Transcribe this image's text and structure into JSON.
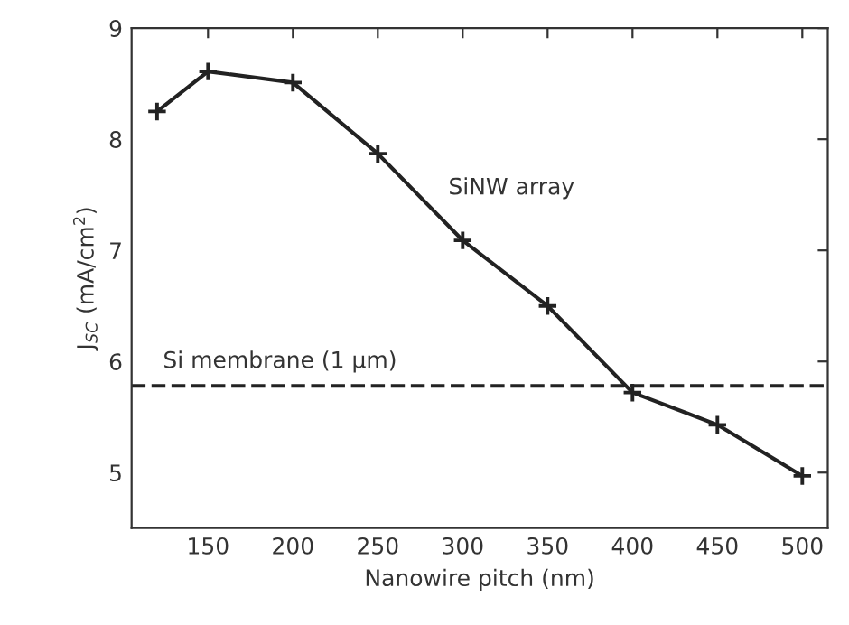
{
  "chart_data": {
    "type": "line",
    "xlabel": "Nanowire pitch (nm)",
    "ylabel": "J$_{SC}$ (mA/cm$^{2}$)",
    "x": [
      120,
      150,
      200,
      250,
      300,
      350,
      400,
      450,
      500
    ],
    "series": [
      {
        "color": "#222222",
        "values": [
          8.25,
          8.61,
          8.51,
          7.87,
          7.09,
          6.5,
          5.72,
          5.43,
          4.97
        ]
      }
    ],
    "xlim": [
      105,
      515
    ],
    "ylim": [
      4.5,
      9
    ],
    "xticks": [
      150,
      200,
      250,
      300,
      350,
      400,
      450,
      500
    ],
    "yticks": [
      5,
      6,
      7,
      8,
      9
    ],
    "ref_lines": [
      {
        "axis": "y",
        "value": 5.78,
        "label": "Si membrane (1 μm)",
        "color": "#222222",
        "line_style": "dashed"
      }
    ],
    "annotations": [
      "SiNW array"
    ],
    "marker": "cross",
    "line_style": "solid",
    "grid": false,
    "legend": false
  }
}
